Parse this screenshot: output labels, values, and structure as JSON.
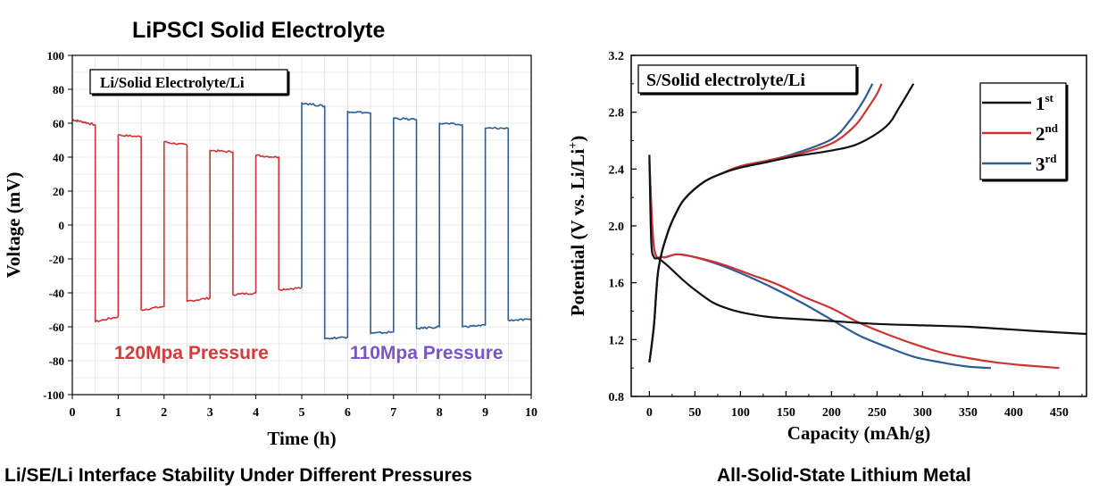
{
  "left_title": "LiPSCl Solid Electrolyte",
  "left_caption": "Li/SE/Li Interface Stability Under Different Pressures",
  "right_caption": "All-Solid-State Lithium Metal",
  "colors": {
    "red": "#cc3333",
    "blue": "#2e5c94",
    "black": "#111111",
    "purple_text": "#7a55c8",
    "red_text": "#d63a3a"
  },
  "chart_data": [
    {
      "type": "line",
      "inset_label": "Li/Solid Electrolyte/Li",
      "xlabel": "Time (h)",
      "ylabel": "Voltage (mV)",
      "xlim": [
        0,
        10
      ],
      "ylim": [
        -100,
        100
      ],
      "xticks": [
        "0",
        "1",
        "2",
        "3",
        "4",
        "5",
        "6",
        "7",
        "8",
        "9",
        "10"
      ],
      "yticks": [
        "100",
        "80",
        "60",
        "40",
        "20",
        "0",
        "-20",
        "-40",
        "-60",
        "-80",
        "-100"
      ],
      "annotations": [
        "120Mpa Pressure",
        "110Mpa Pressure"
      ],
      "series": [
        {
          "color": "red",
          "pressure": "120Mpa",
          "x": [
            0,
            0.2,
            0.5,
            0.5,
            1.0,
            1.0,
            1.5,
            1.5,
            2.0,
            2.0,
            2.5,
            2.5,
            3.0,
            3.0,
            3.5,
            3.5,
            4.0,
            4.0,
            4.5,
            4.5,
            5.0
          ],
          "y": [
            62,
            61,
            59,
            -57,
            -54,
            53,
            52,
            -50,
            -48,
            49,
            47,
            -45,
            -43,
            44,
            43,
            -41,
            -40,
            41,
            40,
            -38,
            -37
          ]
        },
        {
          "color": "blue",
          "pressure": "110Mpa",
          "x": [
            5.0,
            5.0,
            5.5,
            5.5,
            6.0,
            6.0,
            6.5,
            6.5,
            7.0,
            7.0,
            7.5,
            7.5,
            8.0,
            8.0,
            8.5,
            8.5,
            9.0,
            9.0,
            9.5,
            9.5,
            10.0
          ],
          "y": [
            -37,
            72,
            70,
            -67,
            -66,
            67,
            66,
            -64,
            -63,
            63,
            62,
            -61,
            -60,
            60,
            59,
            -60,
            -59,
            57,
            57,
            -56,
            -56
          ]
        }
      ]
    },
    {
      "type": "line",
      "inset_label": "S/Solid electrolyte/Li",
      "xlabel": "Capacity (mAh/g)",
      "ylabel": "Potential (V vs. Li/Li",
      "ylabel_sup": "+",
      "ylabel_end": ")",
      "xlim": [
        -20,
        480
      ],
      "ylim": [
        0.8,
        3.2
      ],
      "xticks": [
        "0",
        "50",
        "100",
        "150",
        "200",
        "250",
        "300",
        "350",
        "400",
        "450"
      ],
      "yticks": [
        "3.2",
        "2.8",
        "2.4",
        "2.0",
        "1.6",
        "1.2",
        "0.8"
      ],
      "legend": {
        "position": "top-right",
        "entries": [
          {
            "base": "1",
            "sup": "st",
            "color": "black"
          },
          {
            "base": "2",
            "sup": "nd",
            "color": "red"
          },
          {
            "base": "3",
            "sup": "rd",
            "color": "blue"
          }
        ]
      },
      "series": [
        {
          "name": "1st",
          "color": "black",
          "discharge": {
            "x": [
              0,
              2,
              5,
              10,
              20,
              35,
              50,
              70,
              90,
              110,
              130,
              150,
              200,
              250,
              300,
              350,
              400,
              450,
              480
            ],
            "y": [
              2.5,
              1.9,
              1.78,
              1.77,
              1.72,
              1.63,
              1.55,
              1.46,
              1.41,
              1.38,
              1.36,
              1.35,
              1.33,
              1.31,
              1.3,
              1.29,
              1.27,
              1.25,
              1.24
            ]
          },
          "charge": {
            "x": [
              0,
              5,
              10,
              20,
              30,
              40,
              60,
              80,
              100,
              130,
              160,
              200,
              230,
              260,
              275,
              290
            ],
            "y": [
              1.04,
              1.3,
              1.7,
              1.95,
              2.1,
              2.2,
              2.31,
              2.37,
              2.41,
              2.45,
              2.49,
              2.53,
              2.58,
              2.7,
              2.84,
              3.0
            ]
          }
        },
        {
          "name": "2nd",
          "color": "red",
          "discharge": {
            "x": [
              0,
              5,
              15,
              30,
              50,
              80,
              110,
              140,
              170,
              200,
              230,
              260,
              290,
              320,
              350,
              380,
              410,
              450
            ],
            "y": [
              2.45,
              1.85,
              1.78,
              1.8,
              1.78,
              1.73,
              1.66,
              1.59,
              1.5,
              1.42,
              1.32,
              1.24,
              1.17,
              1.11,
              1.07,
              1.04,
              1.02,
              1.0
            ]
          },
          "charge": {
            "x": [
              0,
              5,
              10,
              20,
              30,
              40,
              60,
              80,
              100,
              130,
              160,
              200,
              225,
              240,
              250,
              255
            ],
            "y": [
              1.04,
              1.3,
              1.7,
              1.95,
              2.1,
              2.2,
              2.31,
              2.37,
              2.42,
              2.46,
              2.5,
              2.58,
              2.7,
              2.83,
              2.93,
              3.0
            ]
          }
        },
        {
          "name": "3rd",
          "color": "blue",
          "discharge": {
            "x": [
              0,
              5,
              15,
              30,
              50,
              80,
              110,
              140,
              170,
              200,
              230,
              260,
              290,
              320,
              350,
              375
            ],
            "y": [
              2.45,
              1.85,
              1.78,
              1.8,
              1.78,
              1.72,
              1.64,
              1.55,
              1.45,
              1.34,
              1.23,
              1.15,
              1.08,
              1.04,
              1.01,
              1.0
            ]
          },
          "charge": {
            "x": [
              0,
              5,
              10,
              20,
              30,
              40,
              60,
              80,
              100,
              130,
              160,
              200,
              220,
              235,
              245
            ],
            "y": [
              1.04,
              1.3,
              1.7,
              1.95,
              2.1,
              2.2,
              2.31,
              2.37,
              2.42,
              2.46,
              2.51,
              2.61,
              2.74,
              2.88,
              3.0
            ]
          }
        }
      ]
    }
  ]
}
